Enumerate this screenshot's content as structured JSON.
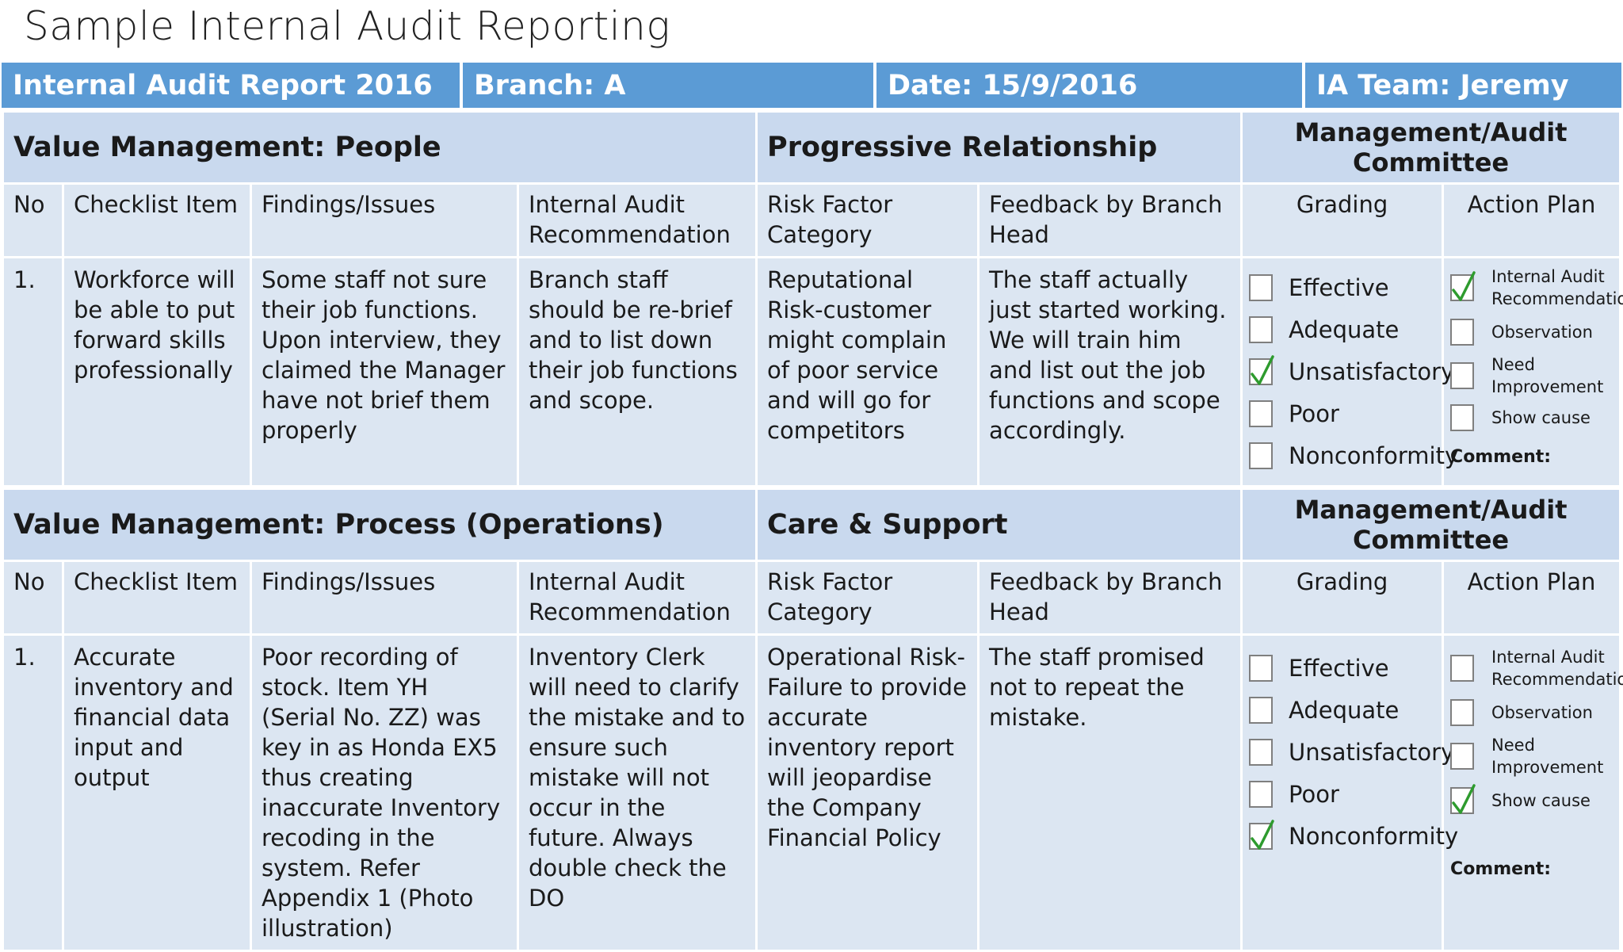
{
  "title": "Sample Internal Audit Reporting",
  "header": {
    "report": "Internal Audit Report 2016",
    "branch": "Branch: A",
    "date": "Date: 15/9/2016",
    "team": "IA Team: Jeremy"
  },
  "sections": [
    {
      "heading_left": "Value Management: People",
      "heading_mid": "Progressive Relationship",
      "heading_right": "Management/Audit Committee",
      "columns": {
        "no": "No",
        "item": "Checklist Item",
        "findings": "Findings/Issues",
        "recommendation": "Internal Audit Recommendation",
        "risk": "Risk Factor Category",
        "feedback": "Feedback by Branch Head",
        "grading": "Grading",
        "action": "Action Plan"
      },
      "row": {
        "no": "1.",
        "item": "Workforce will be able  to put forward skills professionally",
        "findings": "Some staff not sure their job functions. Upon interview, they claimed the Manager have not brief them properly",
        "recommendation": "Branch staff should be re-brief and to list down their job functions and scope.",
        "risk": "Reputational Risk-customer might complain of poor service and will go for competitors",
        "feedback": "The staff actually just started working. We will train him and list out the job functions and scope accordingly."
      },
      "grading": [
        {
          "label": "Effective",
          "checked": false
        },
        {
          "label": "Adequate",
          "checked": false
        },
        {
          "label": "Unsatisfactory",
          "checked": true
        },
        {
          "label": "Poor",
          "checked": false
        },
        {
          "label": "Nonconformity",
          "checked": false
        }
      ],
      "action_plan": [
        {
          "label": "Internal Audit Recommendation",
          "checked": true
        },
        {
          "label": "Observation",
          "checked": false
        },
        {
          "label": "Need Improvement",
          "checked": false
        },
        {
          "label": "Show cause",
          "checked": false
        }
      ],
      "comment_label": "Comment:"
    },
    {
      "heading_left": "Value Management: Process (Operations)",
      "heading_mid": "Care & Support",
      "heading_right": "Management/Audit Committee",
      "columns": {
        "no": "No",
        "item": "Checklist Item",
        "findings": "Findings/Issues",
        "recommendation": "Internal Audit Recommendation",
        "risk": "Risk Factor Category",
        "feedback": "Feedback by Branch Head",
        "grading": "Grading",
        "action": "Action Plan"
      },
      "row": {
        "no": "1.",
        "item": "Accurate inventory and financial data input and output",
        "findings": "Poor recording of stock. Item YH (Serial No. ZZ) was key in as Honda EX5 thus creating inaccurate Inventory recoding in the system. Refer Appendix 1 (Photo illustration)",
        "recommendation": "Inventory Clerk will need to clarify the mistake and to ensure such mistake will not occur in the future. Always double check the DO",
        "risk": "Operational Risk-Failure to provide accurate inventory report will jeopardise the Company Financial Policy",
        "feedback": "The staff promised not to repeat the mistake."
      },
      "grading": [
        {
          "label": "Effective",
          "checked": false
        },
        {
          "label": "Adequate",
          "checked": false
        },
        {
          "label": "Unsatisfactory",
          "checked": false
        },
        {
          "label": "Poor",
          "checked": false
        },
        {
          "label": "Nonconformity",
          "checked": true
        }
      ],
      "action_plan": [
        {
          "label": "Internal Audit Recommendation",
          "checked": false
        },
        {
          "label": "Observation",
          "checked": false
        },
        {
          "label": "Need Improvement",
          "checked": false
        },
        {
          "label": "Show cause",
          "checked": true
        }
      ],
      "comment_label": "Comment:"
    }
  ],
  "colors": {
    "header_bar": "#5b9bd5",
    "section_heading": "#c9d9ee",
    "cell_bg": "#dce6f2",
    "check_mark": "#2e9b2e"
  }
}
